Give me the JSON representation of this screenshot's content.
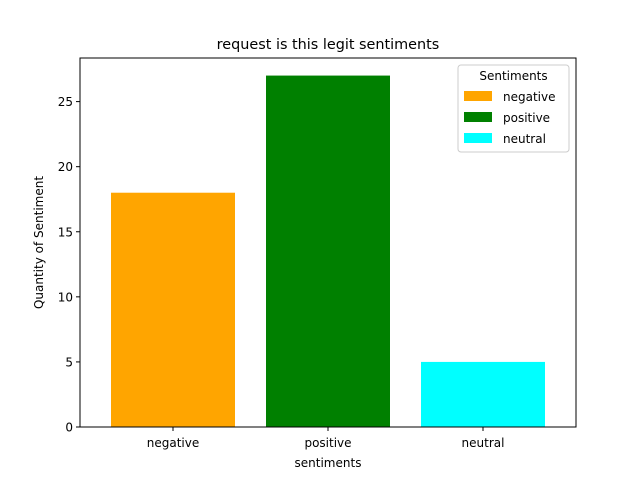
{
  "chart_data": {
    "type": "bar",
    "title": "request is this legit sentiments",
    "xlabel": "sentiments",
    "ylabel": "Quantity of Sentiment",
    "categories": [
      "negative",
      "positive",
      "neutral"
    ],
    "values": [
      18,
      27,
      5
    ],
    "colors": [
      "#ffa500",
      "#008000",
      "#00ffff"
    ],
    "ylim": [
      0,
      28.35
    ],
    "yticks": [
      0,
      5,
      10,
      15,
      20,
      25
    ],
    "grid": false,
    "legend": {
      "title": "Sentiments",
      "placement": "top-right",
      "entries": [
        "negative",
        "positive",
        "neutral"
      ]
    }
  }
}
